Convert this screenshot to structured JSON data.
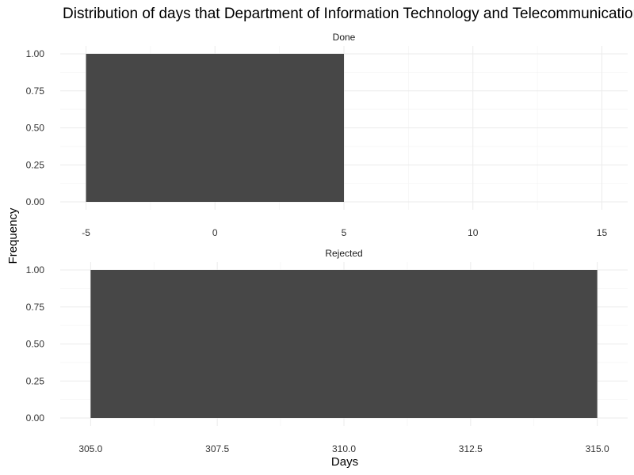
{
  "chart_data": {
    "type": "bar",
    "title": "Distribution of days that Department of Information Technology and Telecommunications",
    "xlabel": "Days",
    "ylabel": "Frequency",
    "grid": true,
    "bar_color": "#474747",
    "facets": [
      {
        "name": "Done",
        "bars": [
          {
            "x_start": -5,
            "x_end": 5,
            "value": 1
          }
        ],
        "xlim": [
          -6,
          16
        ],
        "ylim": [
          0,
          1
        ],
        "x_ticks": [
          -5,
          0,
          5,
          10,
          15
        ],
        "x_tick_labels": [
          "-5",
          "0",
          "5",
          "10",
          "15"
        ],
        "y_ticks": [
          0,
          0.25,
          0.5,
          0.75,
          1
        ],
        "y_tick_labels": [
          "0.00",
          "0.25",
          "0.50",
          "0.75",
          "1.00"
        ]
      },
      {
        "name": "Rejected",
        "bars": [
          {
            "x_start": 305,
            "x_end": 315,
            "value": 1
          }
        ],
        "xlim": [
          304.4,
          315.6
        ],
        "ylim": [
          0,
          1
        ],
        "x_ticks": [
          305,
          307.5,
          310,
          312.5,
          315
        ],
        "x_tick_labels": [
          "305.0",
          "307.5",
          "310.0",
          "312.5",
          "315.0"
        ],
        "y_ticks": [
          0,
          0.25,
          0.5,
          0.75,
          1
        ],
        "y_tick_labels": [
          "0.00",
          "0.25",
          "0.50",
          "0.75",
          "1.00"
        ]
      }
    ]
  }
}
